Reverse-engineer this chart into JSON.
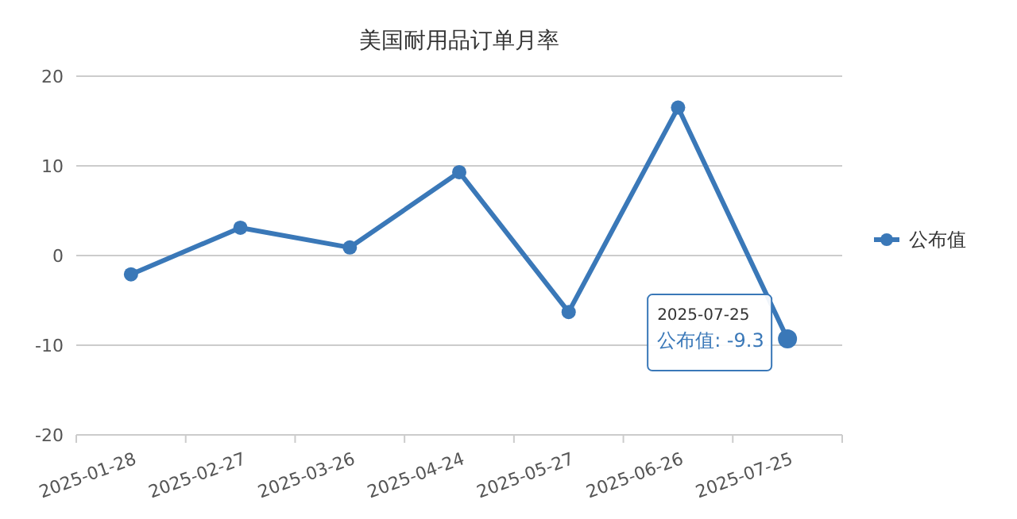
{
  "chart_data": {
    "type": "line",
    "title": "美国耐用品订单月率",
    "categories": [
      "2025-01-28",
      "2025-02-27",
      "2025-03-26",
      "2025-04-24",
      "2025-05-27",
      "2025-06-26",
      "2025-07-25"
    ],
    "series": [
      {
        "name": "公布值",
        "color": "#3a78b8",
        "values": [
          -2.1,
          3.1,
          0.9,
          9.3,
          -6.3,
          16.5,
          -9.3
        ]
      }
    ],
    "ylim": [
      -20,
      20
    ],
    "yticks": [
      -20,
      -10,
      0,
      10,
      20
    ],
    "grid": "y",
    "legend": "right",
    "marker": "circle",
    "line_style": "solid",
    "annotations": [
      {
        "text": "2025-07-25\n公布值: -9.3",
        "x": "2025-07-25",
        "y": -9.3
      }
    ]
  }
}
